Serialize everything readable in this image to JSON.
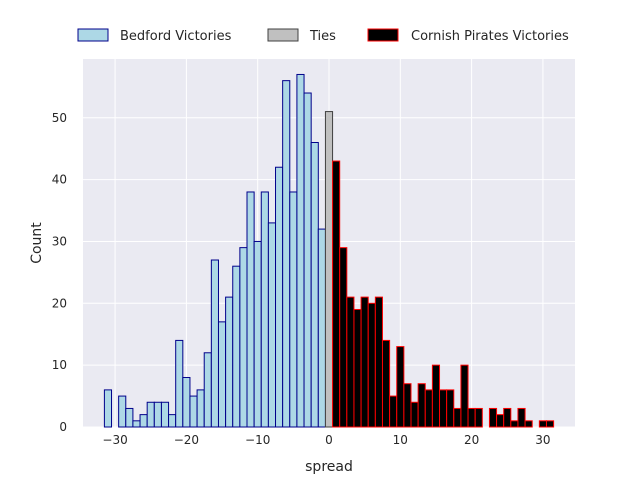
{
  "chart_data": {
    "type": "bar",
    "title": "",
    "xlabel": "spread",
    "ylabel": "Count",
    "xlim": [
      -34.5,
      34.5
    ],
    "ylim": [
      0,
      59.5
    ],
    "xticks": [
      -30,
      -20,
      -10,
      0,
      10,
      20,
      30
    ],
    "yticks": [
      0,
      10,
      20,
      30,
      40,
      50
    ],
    "xtick_labels": [
      "−30",
      "−20",
      "−10",
      "0",
      "10",
      "20",
      "30"
    ],
    "ytick_labels": [
      "0",
      "10",
      "20",
      "30",
      "40",
      "50"
    ],
    "grid": true,
    "legend_position": "top, above plot",
    "series": [
      {
        "name": "Bedford Victories",
        "fill": "#add8e6",
        "edge": "#00008b",
        "x": [
          -31,
          -30,
          -29,
          -28,
          -27,
          -26,
          -25,
          -24,
          -23,
          -22,
          -21,
          -20,
          -19,
          -18,
          -17,
          -16,
          -15,
          -14,
          -13,
          -12,
          -11,
          -10,
          -9,
          -8,
          -7,
          -6,
          -5,
          -4,
          -3,
          -2,
          -1
        ],
        "values": [
          6,
          0,
          5,
          3,
          1,
          2,
          4,
          4,
          4,
          2,
          14,
          8,
          5,
          6,
          12,
          27,
          17,
          21,
          26,
          29,
          38,
          30,
          38,
          33,
          42,
          56,
          38,
          57,
          54,
          46,
          32
        ]
      },
      {
        "name": "Ties",
        "fill": "#c0c0c0",
        "edge": "#404040",
        "x": [
          0
        ],
        "values": [
          51
        ]
      },
      {
        "name": "Cornish Pirates Victories",
        "fill": "#000000",
        "edge": "#ff0000",
        "x": [
          1,
          2,
          3,
          4,
          5,
          6,
          7,
          8,
          9,
          10,
          11,
          12,
          13,
          14,
          15,
          16,
          17,
          18,
          19,
          20,
          21,
          22,
          23,
          24,
          25,
          26,
          27,
          28,
          29,
          30,
          31
        ],
        "values": [
          43,
          29,
          21,
          19,
          21,
          20,
          21,
          14,
          5,
          13,
          7,
          4,
          7,
          6,
          10,
          6,
          6,
          3,
          10,
          3,
          3,
          0,
          3,
          2,
          3,
          1,
          3,
          1,
          0,
          1,
          1
        ]
      }
    ]
  }
}
